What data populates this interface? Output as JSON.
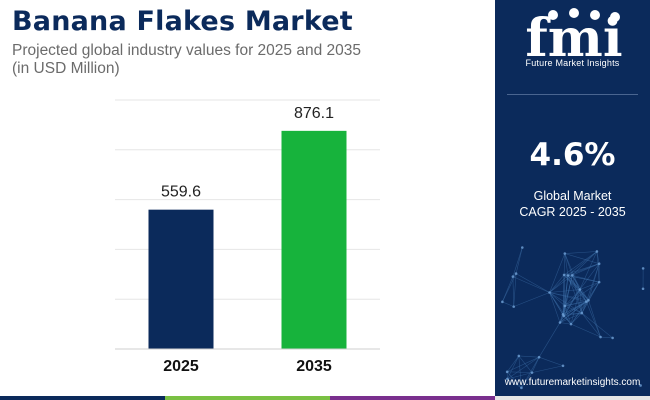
{
  "header": {
    "title": "Banana Flakes Market",
    "subtitle_line1": "Projected global industry values for 2025 and 2035",
    "subtitle_line2": "(in USD Million)"
  },
  "chart_data": {
    "type": "bar",
    "categories": [
      "2025",
      "2035"
    ],
    "values": [
      559.6,
      876.1
    ],
    "value_labels": [
      "559.6",
      "876.1"
    ],
    "bar_colors": [
      "#0b2a5b",
      "#17b33c"
    ],
    "ylim": [
      0,
      1000
    ],
    "grid": true,
    "legend": "none"
  },
  "sidebar": {
    "logo_text": "fmi",
    "brand_name": "Future Market Insights",
    "cagr_value": "4.6%",
    "cagr_label_line1": "Global Market",
    "cagr_label_line2": "CAGR 2025 - 2035",
    "website": "www.futuremarketinsights.com"
  },
  "colors": {
    "navy": "#0b2a5b",
    "green": "#17b33c",
    "bottom_bar": [
      "#0b2a5b",
      "#7ac043",
      "#7a2f8e",
      "#e5e5e5"
    ]
  }
}
